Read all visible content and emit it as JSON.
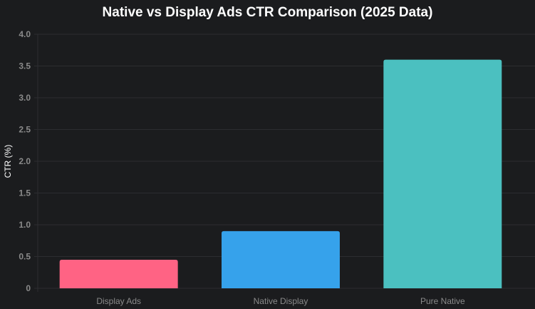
{
  "chart_data": {
    "type": "bar",
    "title": "Native vs Display Ads CTR Comparison (2025 Data)",
    "xlabel": "",
    "ylabel": "CTR (%)",
    "ylim": [
      0,
      4.0
    ],
    "yticks": [
      "0",
      "0.5",
      "1.0",
      "1.5",
      "2.0",
      "2.5",
      "3.0",
      "3.5",
      "4.0"
    ],
    "ytick_values": [
      0,
      0.5,
      1.0,
      1.5,
      2.0,
      2.5,
      3.0,
      3.5,
      4.0
    ],
    "categories": [
      "Display Ads",
      "Native Display",
      "Pure Native"
    ],
    "values": [
      0.45,
      0.9,
      3.6
    ],
    "colors": [
      "#ff6384",
      "#36a2eb",
      "#4bc0c0"
    ],
    "grid": true,
    "legend": "none"
  }
}
